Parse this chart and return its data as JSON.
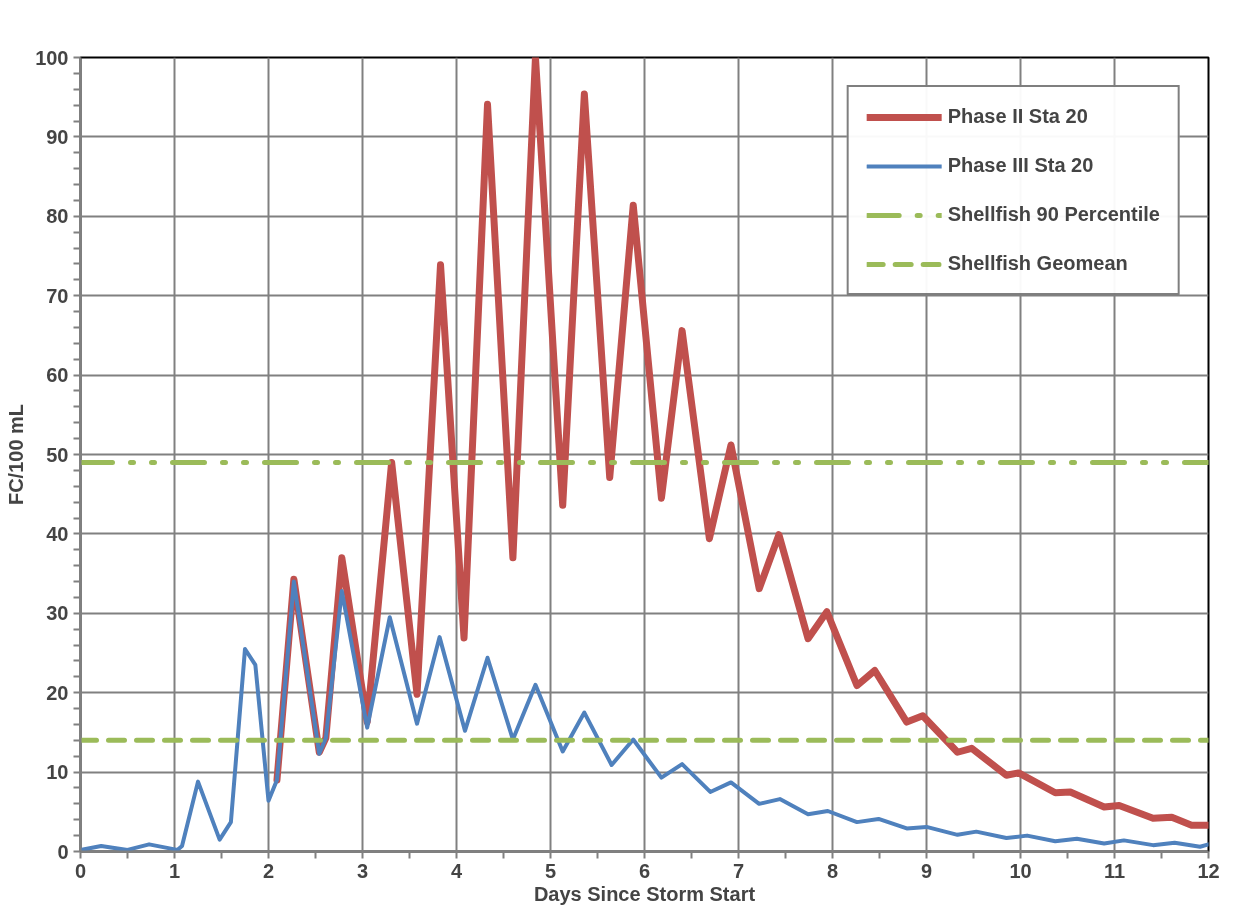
{
  "chart_data": {
    "type": "line",
    "xlabel": "Days Since Storm Start",
    "ylabel": "FC/100 mL",
    "xlim": [
      0,
      12
    ],
    "ylim": [
      0,
      100
    ],
    "xticks": [
      0,
      {
        "value": 0.5,
        "label": null
      },
      1,
      {
        "value": 1.5,
        "label": null
      },
      2,
      {
        "value": 2.5,
        "label": null
      },
      3,
      {
        "value": 3.5,
        "label": null
      },
      4,
      {
        "value": 4.5,
        "label": null
      },
      5,
      {
        "value": 5.5,
        "label": null
      },
      6,
      {
        "value": 6.5,
        "label": null
      },
      7,
      {
        "value": 7.5,
        "label": null
      },
      8,
      {
        "value": 8.5,
        "label": null
      },
      9,
      {
        "value": 9.5,
        "label": null
      },
      10,
      {
        "value": 10.5,
        "label": null
      },
      11,
      {
        "value": 11.5,
        "label": null
      },
      12
    ],
    "yticks": [
      0,
      {
        "value": 2,
        "label": null
      },
      {
        "value": 4,
        "label": null
      },
      {
        "value": 6,
        "label": null
      },
      {
        "value": 8,
        "label": null
      },
      10,
      {
        "value": 12,
        "label": null
      },
      {
        "value": 14,
        "label": null
      },
      {
        "value": 16,
        "label": null
      },
      {
        "value": 18,
        "label": null
      },
      20,
      {
        "value": 22,
        "label": null
      },
      {
        "value": 24,
        "label": null
      },
      {
        "value": 26,
        "label": null
      },
      {
        "value": 28,
        "label": null
      },
      30,
      {
        "value": 32,
        "label": null
      },
      {
        "value": 34,
        "label": null
      },
      {
        "value": 36,
        "label": null
      },
      {
        "value": 38,
        "label": null
      },
      40,
      {
        "value": 42,
        "label": null
      },
      {
        "value": 44,
        "label": null
      },
      {
        "value": 46,
        "label": null
      },
      {
        "value": 48,
        "label": null
      },
      50,
      {
        "value": 52,
        "label": null
      },
      {
        "value": 54,
        "label": null
      },
      {
        "value": 56,
        "label": null
      },
      {
        "value": 58,
        "label": null
      },
      60,
      {
        "value": 62,
        "label": null
      },
      {
        "value": 64,
        "label": null
      },
      {
        "value": 66,
        "label": null
      },
      {
        "value": 68,
        "label": null
      },
      70,
      {
        "value": 72,
        "label": null
      },
      {
        "value": 74,
        "label": null
      },
      {
        "value": 76,
        "label": null
      },
      {
        "value": 78,
        "label": null
      },
      80,
      {
        "value": 82,
        "label": null
      },
      {
        "value": 84,
        "label": null
      },
      {
        "value": 86,
        "label": null
      },
      {
        "value": 88,
        "label": null
      },
      90,
      {
        "value": 92,
        "label": null
      },
      {
        "value": 94,
        "label": null
      },
      {
        "value": 96,
        "label": null
      },
      {
        "value": 98,
        "label": null
      },
      100
    ],
    "grid": true,
    "legend": "top right",
    "marker": "none",
    "line_style": "solid",
    "series": [
      {
        "name": "Phase II Sta 20",
        "color": "#c0504d",
        "x": [
          2.09,
          2.27,
          2.54,
          2.61,
          2.78,
          3.05,
          3.31,
          3.58,
          3.83,
          4.08,
          4.33,
          4.6,
          4.84,
          5.13,
          5.36,
          5.63,
          5.88,
          6.18,
          6.4,
          6.69,
          6.92,
          7.22,
          7.43,
          7.74,
          7.94,
          8.26,
          8.45,
          8.79,
          8.96,
          9.33,
          9.48,
          9.85,
          9.98,
          10.37,
          10.53,
          10.89,
          11.05,
          11.41,
          11.61,
          11.82,
          12
        ],
        "values": [
          9.0,
          34.3,
          12.5,
          14.3,
          37.0,
          16.3,
          49.0,
          19.8,
          73.9,
          26.9,
          94.1,
          37.0,
          100,
          43.6,
          95.4,
          47.1,
          81.4,
          44.5,
          65.6,
          39.4,
          51.2,
          33.1,
          39.9,
          26.8,
          30.2,
          20.9,
          22.8,
          16.3,
          17.1,
          12.5,
          13.0,
          9.6,
          9.9,
          7.4,
          7.5,
          5.6,
          5.8,
          4.2,
          4.3,
          3.3,
          3.3
        ]
      },
      {
        "name": "Phase III Sta 20",
        "color": "#4f81bd",
        "x": [
          0,
          0.22,
          0.5,
          0.73,
          1.03,
          1.08,
          1.25,
          1.48,
          1.6,
          1.75,
          1.86,
          2.0,
          2.09,
          2.27,
          2.54,
          2.61,
          2.78,
          3.05,
          3.29,
          3.58,
          3.82,
          4.09,
          4.33,
          4.6,
          4.84,
          5.13,
          5.36,
          5.65,
          5.88,
          6.18,
          6.4,
          6.7,
          6.92,
          7.22,
          7.44,
          7.74,
          7.95,
          8.26,
          8.49,
          8.79,
          9.0,
          9.33,
          9.53,
          9.85,
          10.07,
          10.37,
          10.6,
          10.89,
          11.1,
          11.41,
          11.64,
          11.91,
          12
        ],
        "values": [
          0.2,
          0.7,
          0.2,
          0.9,
          0.2,
          0.7,
          8.8,
          1.5,
          3.7,
          25.5,
          23.5,
          6.4,
          9.0,
          34.0,
          12.3,
          14.3,
          32.8,
          15.6,
          29.5,
          16.1,
          27.0,
          15.2,
          24.4,
          14.1,
          21.0,
          12.6,
          17.5,
          10.9,
          14.1,
          9.3,
          11.0,
          7.5,
          8.7,
          6.0,
          6.6,
          4.7,
          5.1,
          3.7,
          4.1,
          2.9,
          3.1,
          2.1,
          2.5,
          1.7,
          2.0,
          1.3,
          1.6,
          1.0,
          1.4,
          0.8,
          1.1,
          0.6,
          0.9
        ]
      }
    ],
    "ref_lines": [
      {
        "axis": "y",
        "value": 49,
        "label": "Shellfish 90 Percentile",
        "color": "#9bbb59",
        "line_style": "dashdotdot"
      },
      {
        "axis": "y",
        "value": 14,
        "label": "Shellfish Geomean",
        "color": "#9bbb59",
        "line_style": "dashed"
      }
    ]
  }
}
